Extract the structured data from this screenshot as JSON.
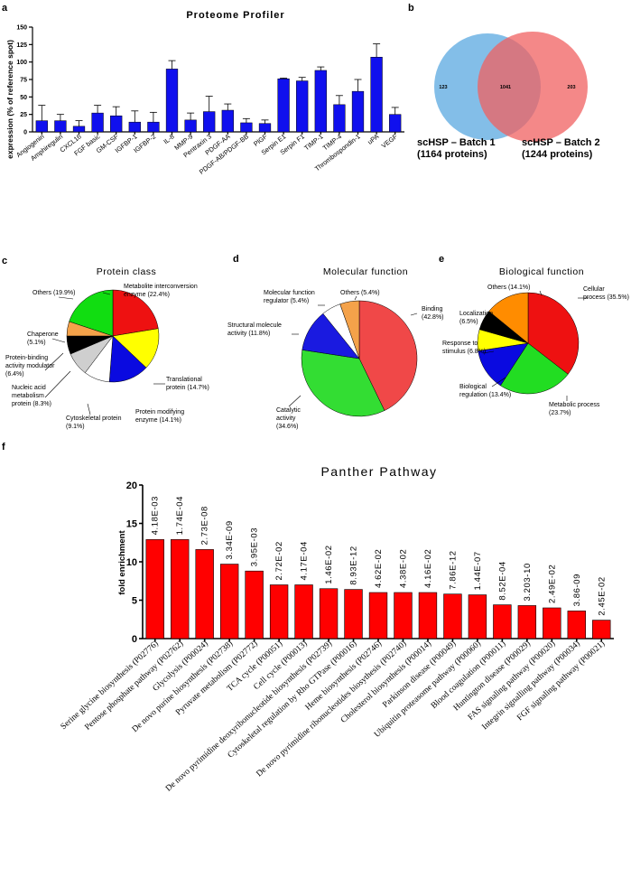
{
  "panel_letters": {
    "a": "a",
    "b": "b",
    "c": "c",
    "d": "d",
    "e": "e",
    "f": "f"
  },
  "chart_data": [
    {
      "id": "a",
      "type": "bar",
      "title": "Proteome Profiler",
      "ylabel": "expression (% of reference spot)",
      "xlabel": "",
      "ylim": [
        0,
        150
      ],
      "yticks": [
        0,
        25,
        50,
        75,
        100,
        125,
        150
      ],
      "bar_color": "#1010ee",
      "categories": [
        "Angiogenin",
        "Amphiregulin",
        "CXCL16",
        "FGF basic",
        "GM-CSF",
        "IGFBP-1",
        "IGFBP-2",
        "IL-8",
        "MMP-9",
        "Pentraxin 3",
        "PDGF-AA",
        "PDGF-AB/PDGF-BB",
        "PlGF",
        "Serpin E1",
        "Serpin F1",
        "TIMP-1",
        "TIMP-4",
        "Thrombospondin-1",
        "uPA",
        "VEGF"
      ],
      "values": [
        16,
        16,
        8,
        27,
        23,
        14,
        14,
        90,
        17,
        29,
        31,
        13,
        12,
        76,
        73,
        88,
        39,
        58,
        107,
        25
      ],
      "errors": [
        22,
        9,
        8,
        11,
        13,
        16,
        14,
        12,
        10,
        22,
        9,
        6,
        5,
        1,
        5,
        5,
        13,
        17,
        19,
        10
      ]
    },
    {
      "id": "b",
      "type": "venn",
      "sets": [
        {
          "name": "scHSP – Batch 1",
          "subtitle": "(1164 proteins)",
          "color": "#5aa8e0",
          "only": "123"
        },
        {
          "name": "scHSP – Batch 2",
          "subtitle": "(1244 proteins)",
          "color": "#f06060",
          "only": "203"
        }
      ],
      "overlap": "1041"
    },
    {
      "id": "c",
      "type": "pie",
      "title": "Protein class",
      "slices": [
        {
          "label": "Metabolite interconversion enzyme (22.4%)",
          "value": 22.4,
          "color": "#ee1111"
        },
        {
          "label": "Translational protein (14.7%)",
          "value": 14.7,
          "color": "#ffff00"
        },
        {
          "label": "Protein modifying enzyme (14.1%)",
          "value": 14.1,
          "color": "#0a0ae0"
        },
        {
          "label": "Cytoskeletal protein (9.1%)",
          "value": 9.1,
          "color": "#ffffff"
        },
        {
          "label": "Nucleic acid metabolism protein (8.3%)",
          "value": 8.3,
          "color": "#cfcfcf"
        },
        {
          "label": "Protein-binding activity modulator (6.4%)",
          "value": 6.4,
          "color": "#000000"
        },
        {
          "label": "Chaperone (5.1%)",
          "value": 5.1,
          "color": "#f4a24a"
        },
        {
          "label": "Others (19.9%)",
          "value": 19.9,
          "color": "#11dd11"
        }
      ]
    },
    {
      "id": "d",
      "type": "pie",
      "title": "Molecular function",
      "slices": [
        {
          "label": "Binding (42.8%)",
          "value": 42.8,
          "color": "#f04848"
        },
        {
          "label": "Catalytic activity (34.6%)",
          "value": 34.6,
          "color": "#33dd33"
        },
        {
          "label": "Structural molecule activity (11.8%)",
          "value": 11.8,
          "color": "#1a1ae0"
        },
        {
          "label": "Molecular function regulator (5.4%)",
          "value": 5.4,
          "color": "#ffffff"
        },
        {
          "label": "Others (5.4%)",
          "value": 5.4,
          "color": "#f4a24a"
        }
      ]
    },
    {
      "id": "e",
      "type": "pie",
      "title": "Biological function",
      "slices": [
        {
          "label": "Cellular process (35.5%)",
          "value": 35.5,
          "color": "#ee1111"
        },
        {
          "label": "Metabolic process (23.7%)",
          "value": 23.7,
          "color": "#22dd22"
        },
        {
          "label": "Biological regulation (13.4%)",
          "value": 13.4,
          "color": "#0a0ae0"
        },
        {
          "label": "Response to stimulus (6.8%)",
          "value": 6.8,
          "color": "#ffff00"
        },
        {
          "label": "Localization (6.5%)",
          "value": 6.5,
          "color": "#000000"
        },
        {
          "label": "Others (14.1%)",
          "value": 14.1,
          "color": "#ff8c00"
        }
      ]
    },
    {
      "id": "f",
      "type": "bar",
      "title": "Panther Pathway",
      "ylabel": "fold enrichment",
      "xlabel": "",
      "ylim": [
        0,
        20
      ],
      "yticks": [
        0,
        5,
        10,
        15,
        20
      ],
      "bar_color": "#ff0000",
      "categories": [
        "Serine glycine biosynthesis (P02776)",
        "Pentose phosphate pathway (P02762)",
        "Glycolysis (P00024)",
        "De novo purine biosynthesis (P02738)",
        "Pyruvate metabolism (P02772)",
        "TCA cycle (P00051)",
        "Cell cycle (P00013)",
        "De novo pyrimidine deoxyribonucleotide biosynthesis (P02739)",
        "Cytoskeletal regulation by Rho GTPase (P00016)",
        "Heme biosynthesis (P02746)",
        "De novo pyrimidine ribonucleotides biosythesis (P02740)",
        "Cholesterol biosynthesis (P00014)",
        "Parkinson disease (P00049)",
        "Ubiquitin proteasome pathway (P00060)",
        "Blood coagulation (P00011)",
        "Huntington disease (P00029)",
        "FAS signaling pathway (P00020)",
        "Integrin signalling pathway (P00034)",
        "FGF signaling pathway (P00021)"
      ],
      "values": [
        12.9,
        12.9,
        11.6,
        9.7,
        8.8,
        7.0,
        7.0,
        6.5,
        6.4,
        6.0,
        6.0,
        6.0,
        5.8,
        5.7,
        4.4,
        4.3,
        4.0,
        3.6,
        2.4
      ],
      "pvalues": [
        "4.18E-03",
        "1.74E-04",
        "2.73E-08",
        "3.34E-09",
        "3.95E-03",
        "2.72E-02",
        "4.17E-04",
        "1.46E-02",
        "8.93E-12",
        "4.62E-02",
        "4.38E-02",
        "4.16E-02",
        "7.86E-12",
        "1.44E-07",
        "8.52E-04",
        "3.203-10",
        "2.49E-02",
        "3.86-09",
        "2.45E-02"
      ]
    }
  ]
}
